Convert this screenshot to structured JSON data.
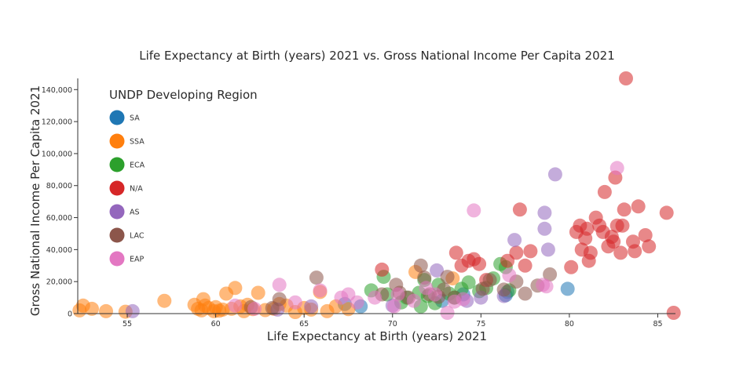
{
  "chart_data": {
    "type": "scatter",
    "title": "Life Expectancy at Birth (years) 2021 vs. Gross National Income Per Capita 2021",
    "xlabel": "Life Expectancy at Birth (years) 2021",
    "ylabel": "Gross National Income Per Capita 2021",
    "xlim": [
      52.2,
      86
    ],
    "ylim": [
      0,
      147000
    ],
    "xticks": [
      55,
      60,
      65,
      70,
      75,
      80,
      85
    ],
    "yticks": [
      0,
      20000,
      40000,
      60000,
      80000,
      100000,
      120000,
      140000
    ],
    "ytick_labels": [
      "0",
      "20,000",
      "40,000",
      "60,000",
      "80,000",
      "100,000",
      "120,000",
      "140,000"
    ],
    "legend": {
      "title": "UNDP Developing Region",
      "position": "top-left"
    },
    "series": [
      {
        "name": "SA",
        "color": "#1f77b4",
        "points": [
          [
            67.3,
            6000
          ],
          [
            68.2,
            4500
          ],
          [
            72.8,
            8000
          ],
          [
            74.0,
            12000
          ],
          [
            76.4,
            11500
          ],
          [
            76.5,
            13500
          ],
          [
            79.9,
            15500
          ]
        ]
      },
      {
        "name": "SSA",
        "color": "#ff7f0e",
        "points": [
          [
            52.3,
            2000
          ],
          [
            52.5,
            5000
          ],
          [
            53.0,
            3000
          ],
          [
            53.8,
            1500
          ],
          [
            54.9,
            1200
          ],
          [
            57.1,
            8000
          ],
          [
            58.8,
            5500
          ],
          [
            59.0,
            3000
          ],
          [
            59.2,
            2000
          ],
          [
            59.3,
            9000
          ],
          [
            59.4,
            5000
          ],
          [
            59.6,
            3500
          ],
          [
            59.9,
            1500
          ],
          [
            60.0,
            4000
          ],
          [
            60.2,
            1800
          ],
          [
            60.4,
            2500
          ],
          [
            60.6,
            12500
          ],
          [
            60.9,
            3000
          ],
          [
            61.1,
            16000
          ],
          [
            61.4,
            4500
          ],
          [
            61.6,
            1500
          ],
          [
            61.8,
            5500
          ],
          [
            62.1,
            2800
          ],
          [
            62.4,
            13000
          ],
          [
            62.8,
            2200
          ],
          [
            63.3,
            3000
          ],
          [
            63.6,
            6000
          ],
          [
            64.0,
            5000
          ],
          [
            64.5,
            1000
          ],
          [
            65.0,
            3500
          ],
          [
            65.4,
            2500
          ],
          [
            65.9,
            13500
          ],
          [
            66.3,
            1500
          ],
          [
            66.8,
            4500
          ],
          [
            67.5,
            2800
          ],
          [
            71.3,
            26000
          ],
          [
            73.4,
            22000
          ]
        ]
      },
      {
        "name": "ECA",
        "color": "#2ca02c",
        "points": [
          [
            68.8,
            14500
          ],
          [
            69.5,
            23000
          ],
          [
            69.7,
            12000
          ],
          [
            70.5,
            7000
          ],
          [
            70.8,
            10000
          ],
          [
            71.5,
            13000
          ],
          [
            71.6,
            4500
          ],
          [
            71.8,
            21000
          ],
          [
            72.0,
            11000
          ],
          [
            72.4,
            6500
          ],
          [
            72.6,
            18000
          ],
          [
            73.2,
            12500
          ],
          [
            73.5,
            10000
          ],
          [
            73.9,
            15500
          ],
          [
            74.3,
            19500
          ],
          [
            74.9,
            14000
          ],
          [
            75.3,
            16000
          ],
          [
            75.7,
            22000
          ],
          [
            76.1,
            31000
          ],
          [
            76.4,
            29000
          ],
          [
            76.6,
            14500
          ]
        ]
      },
      {
        "name": "N/A",
        "color": "#d62728",
        "points": [
          [
            69.4,
            27500
          ],
          [
            73.6,
            38000
          ],
          [
            73.9,
            30000
          ],
          [
            74.3,
            33000
          ],
          [
            74.6,
            34000
          ],
          [
            74.9,
            31000
          ],
          [
            75.3,
            21000
          ],
          [
            76.5,
            33000
          ],
          [
            77.0,
            38000
          ],
          [
            77.2,
            65000
          ],
          [
            77.5,
            30000
          ],
          [
            77.8,
            39000
          ],
          [
            80.1,
            29000
          ],
          [
            80.4,
            51000
          ],
          [
            80.6,
            55000
          ],
          [
            80.7,
            40000
          ],
          [
            80.9,
            47000
          ],
          [
            81.0,
            53000
          ],
          [
            81.1,
            33000
          ],
          [
            81.2,
            38000
          ],
          [
            81.5,
            60000
          ],
          [
            81.7,
            55000
          ],
          [
            81.9,
            51000
          ],
          [
            82.0,
            76000
          ],
          [
            82.2,
            42000
          ],
          [
            82.4,
            48000
          ],
          [
            82.5,
            45000
          ],
          [
            82.6,
            85000
          ],
          [
            82.7,
            55000
          ],
          [
            82.9,
            38000
          ],
          [
            83.0,
            55000
          ],
          [
            83.1,
            65000
          ],
          [
            83.2,
            147000
          ],
          [
            83.6,
            45000
          ],
          [
            83.7,
            39000
          ],
          [
            83.9,
            67000
          ],
          [
            84.3,
            49000
          ],
          [
            84.5,
            42000
          ],
          [
            85.5,
            63000
          ],
          [
            85.9,
            500
          ]
        ]
      },
      {
        "name": "AS",
        "color": "#9467bd",
        "points": [
          [
            55.3,
            1500
          ],
          [
            63.5,
            2500
          ],
          [
            65.4,
            4500
          ],
          [
            70.0,
            5000
          ],
          [
            72.5,
            27000
          ],
          [
            74.2,
            8000
          ],
          [
            75.0,
            10000
          ],
          [
            76.3,
            11000
          ],
          [
            76.9,
            46000
          ],
          [
            78.6,
            53000
          ],
          [
            78.6,
            63000
          ],
          [
            78.8,
            40000
          ],
          [
            79.2,
            87000
          ]
        ]
      },
      {
        "name": "LAC",
        "color": "#8c564b",
        "points": [
          [
            62.0,
            4000
          ],
          [
            63.2,
            3500
          ],
          [
            63.6,
            9000
          ],
          [
            65.7,
            22500
          ],
          [
            69.4,
            12000
          ],
          [
            70.2,
            18000
          ],
          [
            70.4,
            13000
          ],
          [
            70.9,
            10000
          ],
          [
            71.6,
            30000
          ],
          [
            71.8,
            22500
          ],
          [
            72.1,
            12000
          ],
          [
            72.6,
            10500
          ],
          [
            72.9,
            15000
          ],
          [
            73.1,
            23000
          ],
          [
            73.5,
            10000
          ],
          [
            75.1,
            15500
          ],
          [
            75.5,
            21000
          ],
          [
            76.3,
            15000
          ],
          [
            77.0,
            20000
          ],
          [
            77.5,
            12500
          ],
          [
            78.2,
            17500
          ],
          [
            78.9,
            24500
          ]
        ]
      },
      {
        "name": "EAP",
        "color": "#e377c2",
        "points": [
          [
            61.1,
            5000
          ],
          [
            62.2,
            3000
          ],
          [
            63.6,
            18000
          ],
          [
            64.5,
            7000
          ],
          [
            65.9,
            14500
          ],
          [
            67.1,
            10000
          ],
          [
            67.5,
            12000
          ],
          [
            68.0,
            7000
          ],
          [
            69.0,
            10000
          ],
          [
            70.1,
            4500
          ],
          [
            70.3,
            12000
          ],
          [
            71.2,
            8000
          ],
          [
            71.9,
            16000
          ],
          [
            72.4,
            12000
          ],
          [
            73.1,
            500
          ],
          [
            73.5,
            7500
          ],
          [
            74.0,
            9000
          ],
          [
            74.6,
            64500
          ],
          [
            76.6,
            24000
          ],
          [
            78.5,
            18000
          ],
          [
            78.7,
            17000
          ],
          [
            82.7,
            91000
          ]
        ]
      }
    ]
  }
}
